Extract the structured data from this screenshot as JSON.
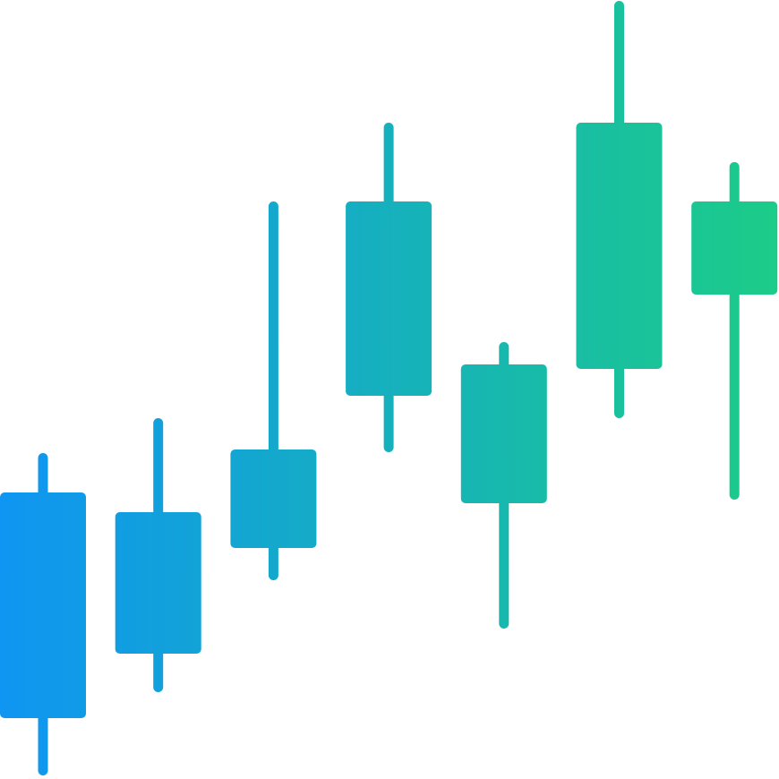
{
  "chart_data": {
    "type": "candlestick",
    "title": "",
    "xlabel": "",
    "ylabel": "",
    "axes_visible": false,
    "grid": false,
    "legend": "none",
    "ylim": [
      0,
      870
    ],
    "candles": [
      {
        "high": 364,
        "open": 320,
        "close": 68,
        "low": 4
      },
      {
        "high": 403,
        "open": 298,
        "close": 140,
        "low": 97
      },
      {
        "high": 645,
        "open": 368,
        "close": 258,
        "low": 222
      },
      {
        "high": 733,
        "open": 645,
        "close": 428,
        "low": 365
      },
      {
        "high": 488,
        "open": 463,
        "close": 308,
        "low": 168
      },
      {
        "high": 869,
        "open": 733,
        "close": 458,
        "low": 403
      },
      {
        "high": 689,
        "open": 645,
        "close": 541,
        "low": 312
      }
    ],
    "colors": {
      "gradient_start": "#0f95f2",
      "gradient_end": "#1ccc88"
    }
  }
}
